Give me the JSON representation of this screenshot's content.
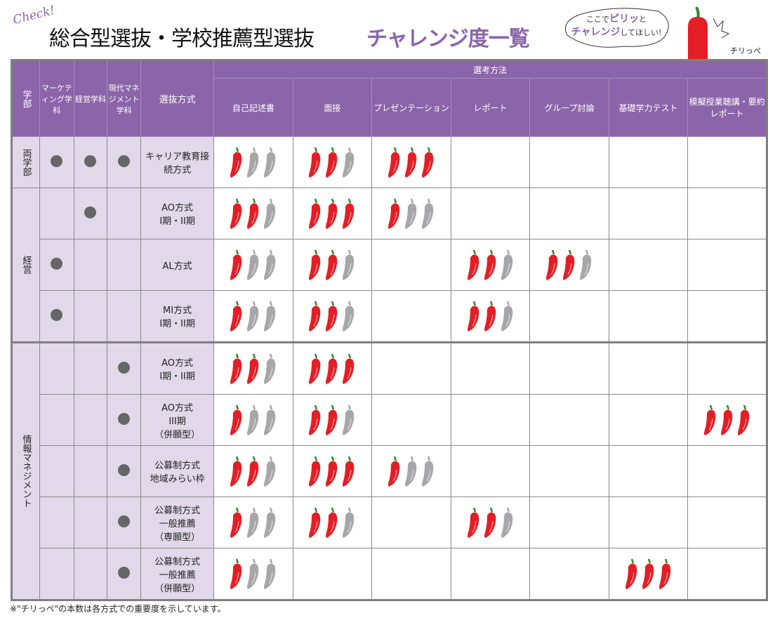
{
  "header": {
    "check": "Check!",
    "title": "総合型選抜・学校推薦型選抜",
    "title_accent": "チャレンジ度一覧",
    "bubble_pre": "ここで",
    "bubble_accent1": "ピリッ",
    "bubble_mid": "と",
    "bubble_accent2": "チャレンジ",
    "bubble_post": "してほしい!",
    "mascot_name": "チリっぺ"
  },
  "colors": {
    "accent": "#8c64a9",
    "pepper_on": "#e41e26",
    "pepper_off": "#a7a7aa",
    "label_bg": "#e1d9ea"
  },
  "table": {
    "h_faculty": "学部",
    "h_marketing": "マーケティング学科",
    "h_business": "経営学科",
    "h_modern": "現代マネジメント学科",
    "h_method": "選抜方式",
    "h_group": "選考方法",
    "criteria": [
      "自己記述書",
      "面接",
      "プレゼンテーション",
      "レポート",
      "グループ討論",
      "基礎学力テスト",
      "模擬授業聴講・要約レポート"
    ],
    "faculties": [
      {
        "name": "両学部",
        "rows": 1
      },
      {
        "name": "経営",
        "rows": 3
      },
      {
        "name": "情報マネジメント",
        "rows": 5
      }
    ],
    "rows": [
      {
        "method": "キャリア教育接続方式",
        "depts": [
          true,
          true,
          true
        ],
        "peppers": [
          1,
          2,
          3,
          0,
          0,
          0,
          0
        ]
      },
      {
        "method": "AO方式 I期・II期",
        "depts": [
          false,
          true,
          false
        ],
        "peppers": [
          2,
          3,
          1,
          0,
          0,
          0,
          0
        ]
      },
      {
        "method": "AL方式",
        "depts": [
          true,
          false,
          false
        ],
        "peppers": [
          1,
          2,
          0,
          2,
          2,
          0,
          0
        ]
      },
      {
        "method": "MI方式 I期・II期",
        "depts": [
          true,
          false,
          false
        ],
        "peppers": [
          1,
          2,
          0,
          2,
          0,
          0,
          0
        ]
      },
      {
        "method": "AO方式 I期・II期",
        "depts": [
          false,
          false,
          true
        ],
        "peppers": [
          2,
          3,
          0,
          0,
          0,
          0,
          0
        ]
      },
      {
        "method": "AO方式 III期 （併願型）",
        "depts": [
          false,
          false,
          true
        ],
        "peppers": [
          1,
          2,
          0,
          0,
          0,
          0,
          3
        ]
      },
      {
        "method": "公募制方式 地域みらい枠",
        "depts": [
          false,
          false,
          true
        ],
        "peppers": [
          2,
          3,
          1,
          0,
          0,
          0,
          0
        ]
      },
      {
        "method": "公募制方式 一般推薦 （専願型）",
        "depts": [
          false,
          false,
          true
        ],
        "peppers": [
          1,
          2,
          0,
          2,
          0,
          0,
          0
        ]
      },
      {
        "method": "公募制方式 一般推薦 （併願型）",
        "depts": [
          false,
          false,
          true
        ],
        "peppers": [
          1,
          0,
          0,
          0,
          0,
          3,
          0
        ]
      }
    ]
  },
  "footer": "※\"チリっぺ\"の本数は各方式での重要度を示しています。"
}
